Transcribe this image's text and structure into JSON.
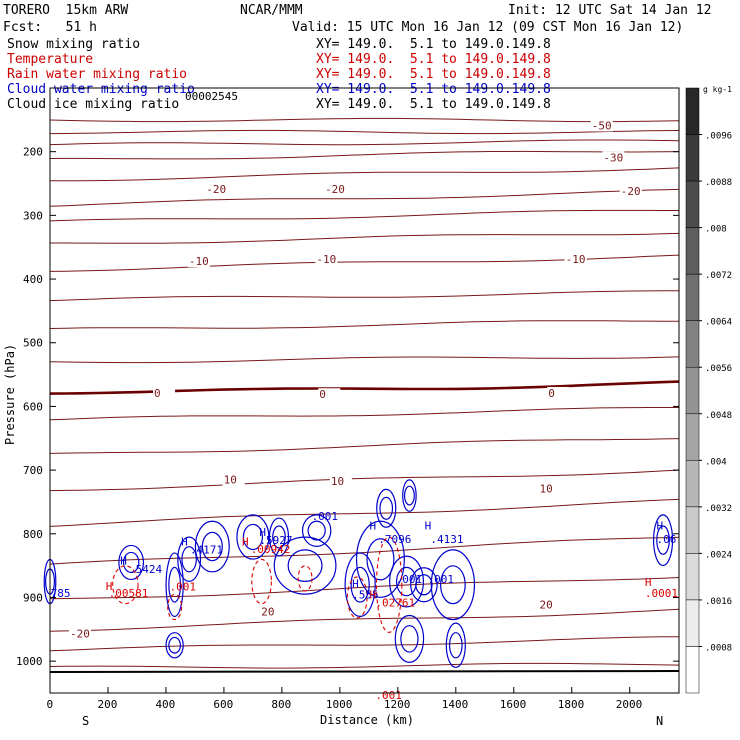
{
  "header": {
    "model": "TORERO  15km ARW",
    "center": "NCAR/MMM",
    "init": "Init: 12 UTC Sat 14 Jan 12",
    "fcst": "Fcst:   51 h",
    "valid": "Valid: 15 UTC Mon 16 Jan 12 (09 CST Mon 16 Jan 12)"
  },
  "fields": [
    {
      "name": "Snow mixing ratio",
      "xy": "",
      "color": "#000000"
    },
    {
      "name": "Temperature",
      "xy": "XY= 149.0.  5.1 to 149.0.149.8",
      "color": "#cc0000"
    },
    {
      "name": "Rain water mixing ratio",
      "xy": "XY= 149.0.  5.1 to 149.0.149.8",
      "color": "#cc0000"
    },
    {
      "name": "Cloud water mixing ratio",
      "xy": "XY= 149.0.  5.1 to 149.0.149.8",
      "color": "#0000cc"
    },
    {
      "name": "Cloud ice mixing ratio",
      "xy": "XY= 149.0.  5.1 to 149.0.149.8",
      "color": "#000000"
    }
  ],
  "first_xy": "XY= 149.0.  5.1 to 149.0.149.8",
  "overlap_value": "00002545",
  "colors": {
    "temperature": "#7a1818",
    "temperature_zero": "#6b0000",
    "rain": "#dd0000",
    "cloud_water": "#0000cc"
  },
  "chart_data": {
    "type": "contour-cross-section",
    "xlabel": "Distance (km)",
    "ylabel": "Pressure (hPa)",
    "xlim": [
      0,
      2170
    ],
    "ylim": [
      1050,
      100
    ],
    "x_ticks": [
      0,
      200,
      400,
      600,
      800,
      1000,
      1200,
      1400,
      1600,
      1800,
      2000
    ],
    "y_ticks": [
      200,
      300,
      400,
      500,
      600,
      700,
      800,
      900,
      1000
    ],
    "x_endpoints": {
      "left": "S",
      "right": "N"
    },
    "temperature_contours": [
      {
        "base": 120,
        "slope": 0,
        "label": ""
      },
      {
        "base": 132,
        "slope": 0,
        "label": ""
      },
      {
        "base": 145,
        "slope": -4,
        "label": ""
      },
      {
        "base": 160,
        "slope": -10,
        "label": "-50"
      },
      {
        "base": 180,
        "slope": -12,
        "label": ""
      },
      {
        "base": 205,
        "slope": -14,
        "label": ""
      },
      {
        "base": 222,
        "slope": -12,
        "label": "-30"
      },
      {
        "base": 244,
        "slope": -12,
        "label": ""
      },
      {
        "base": 270,
        "slope": -14,
        "label": "-20"
      },
      {
        "base": 300,
        "slope": -8,
        "label": ""
      },
      {
        "base": 330,
        "slope": -10,
        "label": "-10"
      },
      {
        "base": 362,
        "slope": -6,
        "label": ""
      },
      {
        "base": 392,
        "slope": -8,
        "label": "0",
        "bold": true
      },
      {
        "base": 420,
        "slope": -12,
        "label": ""
      },
      {
        "base": 455,
        "slope": -18,
        "label": ""
      },
      {
        "base": 490,
        "slope": -20,
        "label": "10"
      },
      {
        "base": 525,
        "slope": -24,
        "label": ""
      },
      {
        "base": 565,
        "slope": -28,
        "label": ""
      },
      {
        "base": 600,
        "slope": -24,
        "label": "20"
      },
      {
        "base": 630,
        "slope": -20,
        "label": ""
      },
      {
        "base": 650,
        "slope": -12,
        "label": "-20"
      },
      {
        "base": 668,
        "slope": -4,
        "label": ""
      }
    ],
    "temperature_labels": [
      {
        "text": "-50",
        "x": 1900,
        "p": 162
      },
      {
        "text": "-30",
        "x": 1940,
        "p": 212
      },
      {
        "text": "-20",
        "x": 570,
        "p": 262
      },
      {
        "text": "-20",
        "x": 980,
        "p": 262
      },
      {
        "text": "-20",
        "x": 2000,
        "p": 265
      },
      {
        "text": "-10",
        "x": 510,
        "p": 375
      },
      {
        "text": "-10",
        "x": 950,
        "p": 372
      },
      {
        "text": "-10",
        "x": 1810,
        "p": 372
      },
      {
        "text": "0",
        "x": 390,
        "p": 582
      },
      {
        "text": "0",
        "x": 960,
        "p": 584
      },
      {
        "text": "0",
        "x": 1750,
        "p": 582
      },
      {
        "text": "10",
        "x": 630,
        "p": 718
      },
      {
        "text": "10",
        "x": 1000,
        "p": 720
      },
      {
        "text": "10",
        "x": 1720,
        "p": 732
      },
      {
        "text": "20",
        "x": 760,
        "p": 925
      },
      {
        "text": "20",
        "x": 1720,
        "p": 914
      },
      {
        "text": "-20",
        "x": 100,
        "p": 960
      }
    ],
    "cloud_water_labels": [
      {
        "text": "H",
        "x": 270,
        "p": 842
      },
      {
        "text": ".5424",
        "x": 300,
        "p": 855
      },
      {
        "text": "H",
        "x": 480,
        "p": 812
      },
      {
        "text": ".4171",
        "x": 510,
        "p": 825
      },
      {
        "text": "H",
        "x": 750,
        "p": 797
      },
      {
        "text": ".5927",
        "x": 750,
        "p": 810
      },
      {
        "text": ".001",
        "x": 930,
        "p": 772
      },
      {
        "text": "H",
        "x": 1130,
        "p": 787
      },
      {
        "text": ".7096",
        "x": 1160,
        "p": 808
      },
      {
        "text": "H",
        "x": 1320,
        "p": 787
      },
      {
        "text": ".4131",
        "x": 1340,
        "p": 808
      },
      {
        "text": ".001",
        "x": 1220,
        "p": 871
      },
      {
        "text": ".001",
        "x": 1330,
        "p": 871
      },
      {
        "text": "H",
        "x": 1070,
        "p": 878
      },
      {
        "text": ".555",
        "x": 1070,
        "p": 895
      },
      {
        "text": "H",
        "x": 2120,
        "p": 787
      },
      {
        "text": ".06",
        "x": 2120,
        "p": 808
      },
      {
        "text": "785",
        "x": 30,
        "p": 893
      }
    ],
    "rain_labels": [
      {
        "text": "H",
        "x": 220,
        "p": 882
      },
      {
        "text": ".00581",
        "x": 230,
        "p": 893
      },
      {
        "text": ".001",
        "x": 440,
        "p": 883
      },
      {
        "text": "H",
        "x": 690,
        "p": 812
      },
      {
        "text": ".00942",
        "x": 720,
        "p": 824
      },
      {
        "text": "H",
        "x": 1130,
        "p": 895
      },
      {
        "text": ".02761",
        "x": 1150,
        "p": 908
      },
      {
        "text": "H",
        "x": 2080,
        "p": 876
      },
      {
        "text": ".0001",
        "x": 2080,
        "p": 893
      },
      {
        "text": ".001",
        "x": 1150,
        "p": 1053
      }
    ],
    "colorbar": {
      "unit": "g kg-1",
      "labels": [
        ".0096",
        ".0088",
        ".008",
        ".0072",
        ".0064",
        ".0056",
        ".0048",
        ".004",
        ".0032",
        ".0024",
        ".0016",
        ".0008"
      ]
    }
  }
}
